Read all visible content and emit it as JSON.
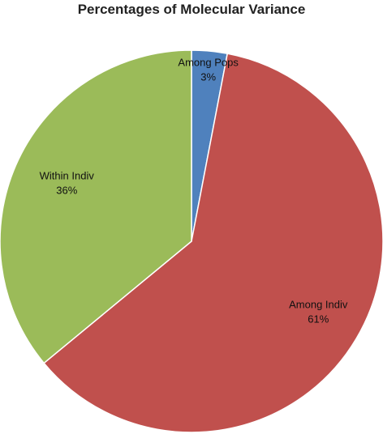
{
  "chart_data": {
    "type": "pie",
    "title": "Percentages of Molecular Variance",
    "start_angle_deg": 0,
    "direction": "clockwise",
    "slices": [
      {
        "label": "Among Pops",
        "value": 3,
        "value_label": "3%",
        "color": "#4f81bd"
      },
      {
        "label": "Among Indiv",
        "value": 61,
        "value_label": "61%",
        "color": "#c0504d"
      },
      {
        "label": "Within Indiv",
        "value": 36,
        "value_label": "36%",
        "color": "#9bbb59"
      }
    ],
    "slice_border_color": "#ffffff",
    "legend": "none"
  }
}
